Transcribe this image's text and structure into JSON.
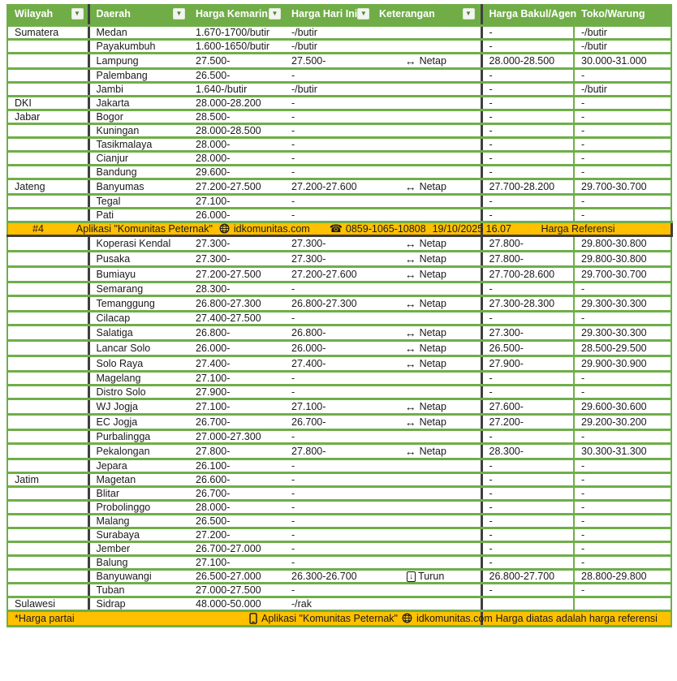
{
  "columns": [
    {
      "label": "Wilayah",
      "filter": true
    },
    {
      "label": "Daerah",
      "filter": true
    },
    {
      "label": "Harga Kemarin",
      "filter": true
    },
    {
      "label": "Harga Hari Ini",
      "filter": true
    },
    {
      "label": "Keterangan",
      "filter": true
    },
    {
      "label": "Harga Bakul/Agen",
      "filter": false
    },
    {
      "label": "Toko/Warung",
      "filter": false
    }
  ],
  "rows": [
    {
      "wilayah": "Sumatera",
      "daerah": "Medan",
      "harga_kemarin": "1.670-1700/butir",
      "harga_hari_ini": "-/butir",
      "keterangan": "",
      "keterangan_icon": "",
      "harga_bakul_agen": "-",
      "toko_warung": "-/butir"
    },
    {
      "wilayah": "",
      "daerah": "Payakumbuh",
      "harga_kemarin": "1.600-1650/butir",
      "harga_hari_ini": "-/butir",
      "keterangan": "",
      "keterangan_icon": "",
      "harga_bakul_agen": "-",
      "toko_warung": "-/butir"
    },
    {
      "wilayah": "",
      "daerah": "Lampung",
      "harga_kemarin": "27.500-",
      "harga_hari_ini": "27.500-",
      "keterangan": "Netap",
      "keterangan_icon": "left-right-arrow",
      "harga_bakul_agen": "28.000-28.500",
      "toko_warung": "30.000-31.000"
    },
    {
      "wilayah": "",
      "daerah": "Palembang",
      "harga_kemarin": "26.500-",
      "harga_hari_ini": "-",
      "keterangan": "",
      "keterangan_icon": "",
      "harga_bakul_agen": "-",
      "toko_warung": "-"
    },
    {
      "wilayah": "",
      "daerah": "Jambi",
      "harga_kemarin": "1.640-/butir",
      "harga_hari_ini": "-/butir",
      "keterangan": "",
      "keterangan_icon": "",
      "harga_bakul_agen": "-",
      "toko_warung": "-/butir"
    },
    {
      "wilayah": "DKI",
      "daerah": "Jakarta",
      "harga_kemarin": "28.000-28.200",
      "harga_hari_ini": "-",
      "keterangan": "",
      "keterangan_icon": "",
      "harga_bakul_agen": "-",
      "toko_warung": "-"
    },
    {
      "wilayah": "Jabar",
      "daerah": "Bogor",
      "harga_kemarin": "28.500-",
      "harga_hari_ini": "-",
      "keterangan": "",
      "keterangan_icon": "",
      "harga_bakul_agen": "-",
      "toko_warung": "-"
    },
    {
      "wilayah": "",
      "daerah": "Kuningan",
      "harga_kemarin": "28.000-28.500",
      "harga_hari_ini": "-",
      "keterangan": "",
      "keterangan_icon": "",
      "harga_bakul_agen": "-",
      "toko_warung": "-"
    },
    {
      "wilayah": "",
      "daerah": "Tasikmalaya",
      "harga_kemarin": "28.000-",
      "harga_hari_ini": "-",
      "keterangan": "",
      "keterangan_icon": "",
      "harga_bakul_agen": "-",
      "toko_warung": "-"
    },
    {
      "wilayah": "",
      "daerah": "Cianjur",
      "harga_kemarin": "28.000-",
      "harga_hari_ini": "-",
      "keterangan": "",
      "keterangan_icon": "",
      "harga_bakul_agen": "-",
      "toko_warung": "-"
    },
    {
      "wilayah": "",
      "daerah": "Bandung",
      "harga_kemarin": "29.600-",
      "harga_hari_ini": "-",
      "keterangan": "",
      "keterangan_icon": "",
      "harga_bakul_agen": "-",
      "toko_warung": "-"
    },
    {
      "wilayah": "Jateng",
      "daerah": "Banyumas",
      "harga_kemarin": "27.200-27.500",
      "harga_hari_ini": "27.200-27.600",
      "keterangan": "Netap",
      "keterangan_icon": "left-right-arrow",
      "harga_bakul_agen": "27.700-28.200",
      "toko_warung": "29.700-30.700"
    },
    {
      "wilayah": "",
      "daerah": "Tegal",
      "harga_kemarin": "27.100-",
      "harga_hari_ini": "-",
      "keterangan": "",
      "keterangan_icon": "",
      "harga_bakul_agen": "-",
      "toko_warung": "-"
    },
    {
      "wilayah": "",
      "daerah": "Pati",
      "harga_kemarin": "26.000-",
      "harga_hari_ini": "-",
      "keterangan": "",
      "keterangan_icon": "",
      "harga_bakul_agen": "-",
      "toko_warung": "-"
    },
    {
      "wilayah": "",
      "daerah": "Koperasi Kendal",
      "harga_kemarin": "27.300-",
      "harga_hari_ini": "27.300-",
      "keterangan": "Netap",
      "keterangan_icon": "left-right-arrow",
      "harga_bakul_agen": "27.800-",
      "toko_warung": "29.800-30.800"
    },
    {
      "wilayah": "",
      "daerah": "Pusaka",
      "harga_kemarin": "27.300-",
      "harga_hari_ini": "27.300-",
      "keterangan": "Netap",
      "keterangan_icon": "left-right-arrow",
      "harga_bakul_agen": "27.800-",
      "toko_warung": "29.800-30.800"
    },
    {
      "wilayah": "",
      "daerah": "Bumiayu",
      "harga_kemarin": "27.200-27.500",
      "harga_hari_ini": "27.200-27.600",
      "keterangan": "Netap",
      "keterangan_icon": "left-right-arrow",
      "harga_bakul_agen": "27.700-28.600",
      "toko_warung": "29.700-30.700"
    },
    {
      "wilayah": "",
      "daerah": "Semarang",
      "harga_kemarin": "28.300-",
      "harga_hari_ini": "-",
      "keterangan": "",
      "keterangan_icon": "",
      "harga_bakul_agen": "-",
      "toko_warung": "-"
    },
    {
      "wilayah": "",
      "daerah": "Temanggung",
      "harga_kemarin": "26.800-27.300",
      "harga_hari_ini": "26.800-27.300",
      "keterangan": "Netap",
      "keterangan_icon": "left-right-arrow",
      "harga_bakul_agen": "27.300-28.300",
      "toko_warung": "29.300-30.300"
    },
    {
      "wilayah": "",
      "daerah": "Cilacap",
      "harga_kemarin": "27.400-27.500",
      "harga_hari_ini": "-",
      "keterangan": "",
      "keterangan_icon": "",
      "harga_bakul_agen": "-",
      "toko_warung": "-"
    },
    {
      "wilayah": "",
      "daerah": "Salatiga",
      "harga_kemarin": "26.800-",
      "harga_hari_ini": "26.800-",
      "keterangan": "Netap",
      "keterangan_icon": "left-right-arrow",
      "harga_bakul_agen": "27.300-",
      "toko_warung": "29.300-30.300"
    },
    {
      "wilayah": "",
      "daerah": "Lancar Solo",
      "harga_kemarin": "26.000-",
      "harga_hari_ini": "26.000-",
      "keterangan": "Netap",
      "keterangan_icon": "left-right-arrow",
      "harga_bakul_agen": "26.500-",
      "toko_warung": "28.500-29.500"
    },
    {
      "wilayah": "",
      "daerah": "Solo Raya",
      "harga_kemarin": "27.400-",
      "harga_hari_ini": "27.400-",
      "keterangan": "Netap",
      "keterangan_icon": "left-right-arrow",
      "harga_bakul_agen": "27.900-",
      "toko_warung": "29.900-30.900"
    },
    {
      "wilayah": "",
      "daerah": "Magelang",
      "harga_kemarin": "27.100-",
      "harga_hari_ini": "-",
      "keterangan": "",
      "keterangan_icon": "",
      "harga_bakul_agen": "-",
      "toko_warung": "-"
    },
    {
      "wilayah": "",
      "daerah": "Distro Solo",
      "harga_kemarin": "27.900-",
      "harga_hari_ini": "-",
      "keterangan": "",
      "keterangan_icon": "",
      "harga_bakul_agen": "-",
      "toko_warung": "-"
    },
    {
      "wilayah": "",
      "daerah": "WJ Jogja",
      "harga_kemarin": "27.100-",
      "harga_hari_ini": "27.100-",
      "keterangan": "Netap",
      "keterangan_icon": "left-right-arrow",
      "harga_bakul_agen": "27.600-",
      "toko_warung": "29.600-30.600"
    },
    {
      "wilayah": "",
      "daerah": "EC Jogja",
      "harga_kemarin": "26.700-",
      "harga_hari_ini": "26.700-",
      "keterangan": "Netap",
      "keterangan_icon": "left-right-arrow",
      "harga_bakul_agen": "27.200-",
      "toko_warung": "29.200-30.200"
    },
    {
      "wilayah": "",
      "daerah": "Purbalingga",
      "harga_kemarin": "27.000-27.300",
      "harga_hari_ini": "-",
      "keterangan": "",
      "keterangan_icon": "",
      "harga_bakul_agen": "-",
      "toko_warung": "-"
    },
    {
      "wilayah": "",
      "daerah": "Pekalongan",
      "harga_kemarin": "27.800-",
      "harga_hari_ini": "27.800-",
      "keterangan": "Netap",
      "keterangan_icon": "left-right-arrow",
      "harga_bakul_agen": "28.300-",
      "toko_warung": "30.300-31.300"
    },
    {
      "wilayah": "",
      "daerah": "Jepara",
      "harga_kemarin": "26.100-",
      "harga_hari_ini": "-",
      "keterangan": "",
      "keterangan_icon": "",
      "harga_bakul_agen": "-",
      "toko_warung": "-"
    },
    {
      "wilayah": "Jatim",
      "daerah": "Magetan",
      "harga_kemarin": "26.600-",
      "harga_hari_ini": "-",
      "keterangan": "",
      "keterangan_icon": "",
      "harga_bakul_agen": "-",
      "toko_warung": "-"
    },
    {
      "wilayah": "",
      "daerah": "Blitar",
      "harga_kemarin": "26.700-",
      "harga_hari_ini": "-",
      "keterangan": "",
      "keterangan_icon": "",
      "harga_bakul_agen": "-",
      "toko_warung": "-"
    },
    {
      "wilayah": "",
      "daerah": "Probolinggo",
      "harga_kemarin": "28.000-",
      "harga_hari_ini": "-",
      "keterangan": "",
      "keterangan_icon": "",
      "harga_bakul_agen": "-",
      "toko_warung": "-"
    },
    {
      "wilayah": "",
      "daerah": "Malang",
      "harga_kemarin": "26.500-",
      "harga_hari_ini": "-",
      "keterangan": "",
      "keterangan_icon": "",
      "harga_bakul_agen": "-",
      "toko_warung": "-"
    },
    {
      "wilayah": "",
      "daerah": "Surabaya",
      "harga_kemarin": "27.200-",
      "harga_hari_ini": "-",
      "keterangan": "",
      "keterangan_icon": "",
      "harga_bakul_agen": "-",
      "toko_warung": "-"
    },
    {
      "wilayah": "",
      "daerah": "Jember",
      "harga_kemarin": "26.700-27.000",
      "harga_hari_ini": "-",
      "keterangan": "",
      "keterangan_icon": "",
      "harga_bakul_agen": "-",
      "toko_warung": "-"
    },
    {
      "wilayah": "",
      "daerah": "Balung",
      "harga_kemarin": "27.100-",
      "harga_hari_ini": "-",
      "keterangan": "",
      "keterangan_icon": "",
      "harga_bakul_agen": "-",
      "toko_warung": "-"
    },
    {
      "wilayah": "",
      "daerah": "Banyuwangi",
      "harga_kemarin": "26.500-27.000",
      "harga_hari_ini": "26.300-26.700",
      "keterangan": "Turun",
      "keterangan_icon": "down-arrow-boxed",
      "harga_bakul_agen": "26.800-27.700",
      "toko_warung": "28.800-29.800"
    },
    {
      "wilayah": "",
      "daerah": "Tuban",
      "harga_kemarin": "27.000-27.500",
      "harga_hari_ini": "-",
      "keterangan": "",
      "keterangan_icon": "",
      "harga_bakul_agen": "-",
      "toko_warung": "-"
    },
    {
      "wilayah": "Sulawesi",
      "daerah": "Sidrap",
      "harga_kemarin": "48.000-50.000",
      "harga_hari_ini": "-/rak",
      "keterangan": "",
      "keterangan_icon": "",
      "harga_bakul_agen": "",
      "toko_warung": ""
    }
  ],
  "banner": {
    "insert_before_row": 14,
    "rank": "#4",
    "app_label": "Aplikasi \"Komunitas Peternak\"",
    "website": "idkomunitas.com",
    "phone": "0859-1065-10808",
    "datetime": "19/10/2025 16.07",
    "right_label": "Harga Referensi"
  },
  "footer": {
    "left": "*Harga partai",
    "app_label": "Aplikasi \"Komunitas Peternak\"",
    "website": "idkomunitas.com",
    "right": "Harga diatas adalah harga referensi"
  },
  "keterangan_legend": {
    "netap_icon": "left-right-arrow",
    "turun_icon": "down-arrow-boxed"
  },
  "colors": {
    "header_green": "#70ad47",
    "grid_green": "#6fae49",
    "accent_orange": "#ffc000",
    "dark_border": "#3f3f3f"
  }
}
